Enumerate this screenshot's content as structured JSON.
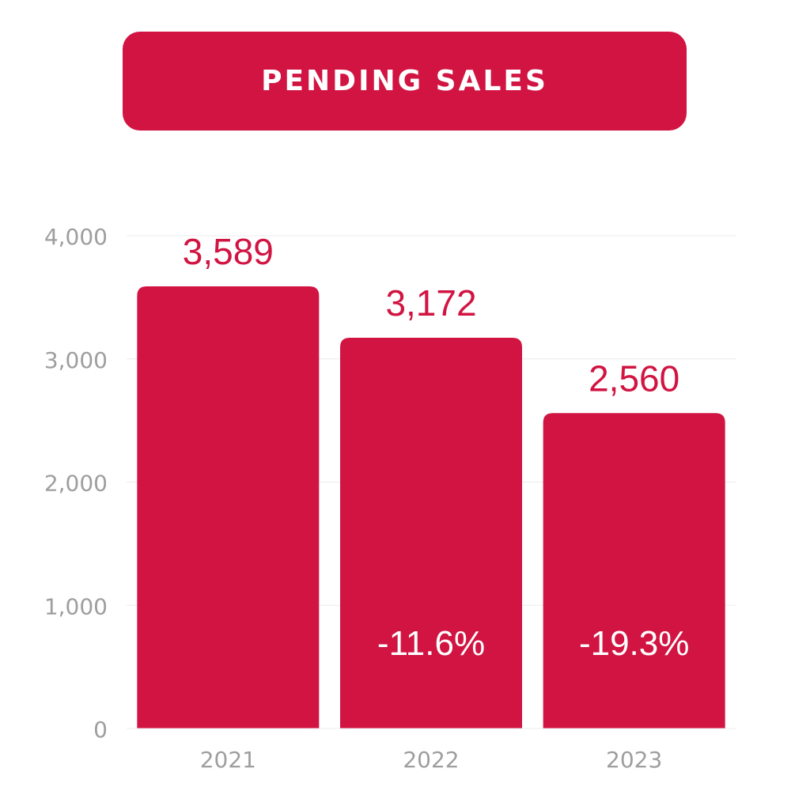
{
  "title": "PENDING SALES",
  "colors": {
    "bar": "#d11442",
    "value_label": "#d11442",
    "change_label": "#ffffff",
    "tick_label": "#9e9e9e",
    "grid": "#ececec"
  },
  "chart_data": {
    "type": "bar",
    "title": "PENDING SALES",
    "xlabel": "",
    "ylabel": "",
    "categories": [
      "2021",
      "2022",
      "2023"
    ],
    "values": [
      3589,
      3172,
      2560
    ],
    "value_labels": [
      "3,589",
      "3,172",
      "2,560"
    ],
    "change_labels": [
      "",
      "-11.6%",
      "-19.3%"
    ],
    "ylim": [
      0,
      4000
    ],
    "yticks": [
      0,
      1000,
      2000,
      3000,
      4000
    ],
    "ytick_labels": [
      "0",
      "1,000",
      "2,000",
      "3,000",
      "4,000"
    ],
    "grid": true,
    "legend": "none"
  }
}
